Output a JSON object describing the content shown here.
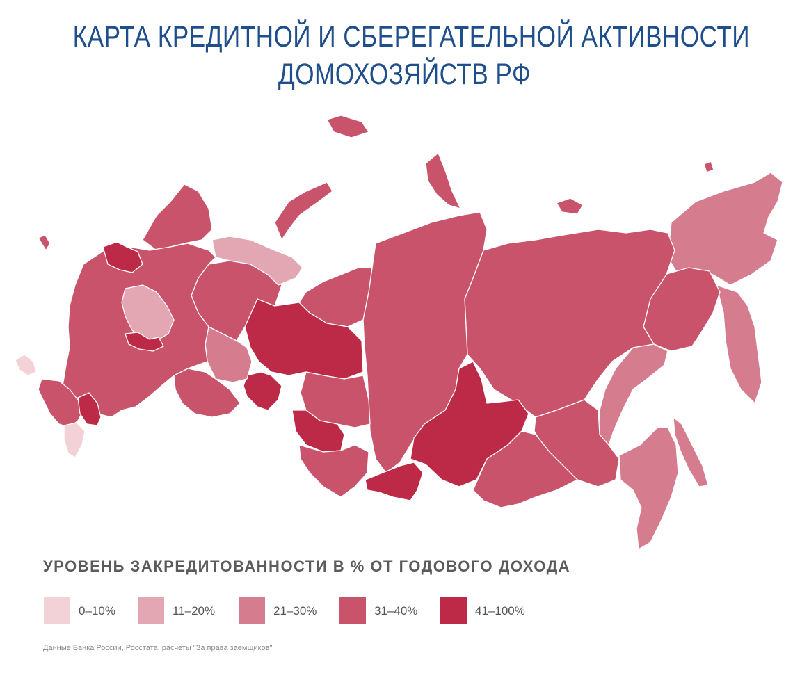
{
  "title": {
    "line1": "КАРТА КРЕДИТНОЙ И СБЕРЕГАТЕЛЬНОЙ АКТИВНОСТИ",
    "line2": "ДОМОХОЗЯЙСТВ РФ"
  },
  "legend": {
    "title": "УРОВЕНЬ ЗАКРЕДИТОВАННОСТИ В % ОТ ГОДОВОГО ДОХОДА",
    "items": [
      {
        "label": "0–10%",
        "color": "#f2d2d7"
      },
      {
        "label": "11–20%",
        "color": "#e2a7b2"
      },
      {
        "label": "21–30%",
        "color": "#d67c8f"
      },
      {
        "label": "31–40%",
        "color": "#c9536b"
      },
      {
        "label": "41–100%",
        "color": "#bc2a48"
      }
    ]
  },
  "source": "Данные Банка России, Росстата, расчеты \"За права заемщиков\"",
  "map": {
    "regions": [
      {
        "name": "far-east-north",
        "level": 2
      },
      {
        "name": "kamchatka",
        "level": 2
      },
      {
        "name": "sakha-yakutia",
        "level": 3
      },
      {
        "name": "magadan",
        "level": 3
      },
      {
        "name": "khabarovsk",
        "level": 2
      },
      {
        "name": "sakhalin",
        "level": 2
      },
      {
        "name": "primorye",
        "level": 2
      },
      {
        "name": "amur",
        "level": 3
      },
      {
        "name": "krasnoyarsk",
        "level": 3
      },
      {
        "name": "taymyr-islands",
        "level": 3
      },
      {
        "name": "irkutsk",
        "level": 4
      },
      {
        "name": "zabaykalye",
        "level": 3
      },
      {
        "name": "tyva",
        "level": 4
      },
      {
        "name": "khmao",
        "level": 4
      },
      {
        "name": "yamal",
        "level": 3
      },
      {
        "name": "tomsk",
        "level": 3
      },
      {
        "name": "novosibirsk",
        "level": 4
      },
      {
        "name": "altai",
        "level": 3
      },
      {
        "name": "komi",
        "level": 3
      },
      {
        "name": "arkhangelsk",
        "level": 1
      },
      {
        "name": "novaya-zemlya",
        "level": 3
      },
      {
        "name": "murmansk-karelia",
        "level": 3
      },
      {
        "name": "perm-ural",
        "level": 2
      },
      {
        "name": "tyumen",
        "level": 4
      },
      {
        "name": "chelyabinsk",
        "level": 3
      },
      {
        "name": "central-russia",
        "level": 3
      },
      {
        "name": "central-light",
        "level": 1
      },
      {
        "name": "moscow-area",
        "level": 4
      },
      {
        "name": "leningrad-area",
        "level": 4
      },
      {
        "name": "kaliningrad",
        "level": 3
      },
      {
        "name": "crimea",
        "level": 0
      },
      {
        "name": "north-caucasus",
        "level": 3
      },
      {
        "name": "chechnya-dagestan",
        "level": 4
      },
      {
        "name": "south-light",
        "level": 0
      }
    ]
  }
}
